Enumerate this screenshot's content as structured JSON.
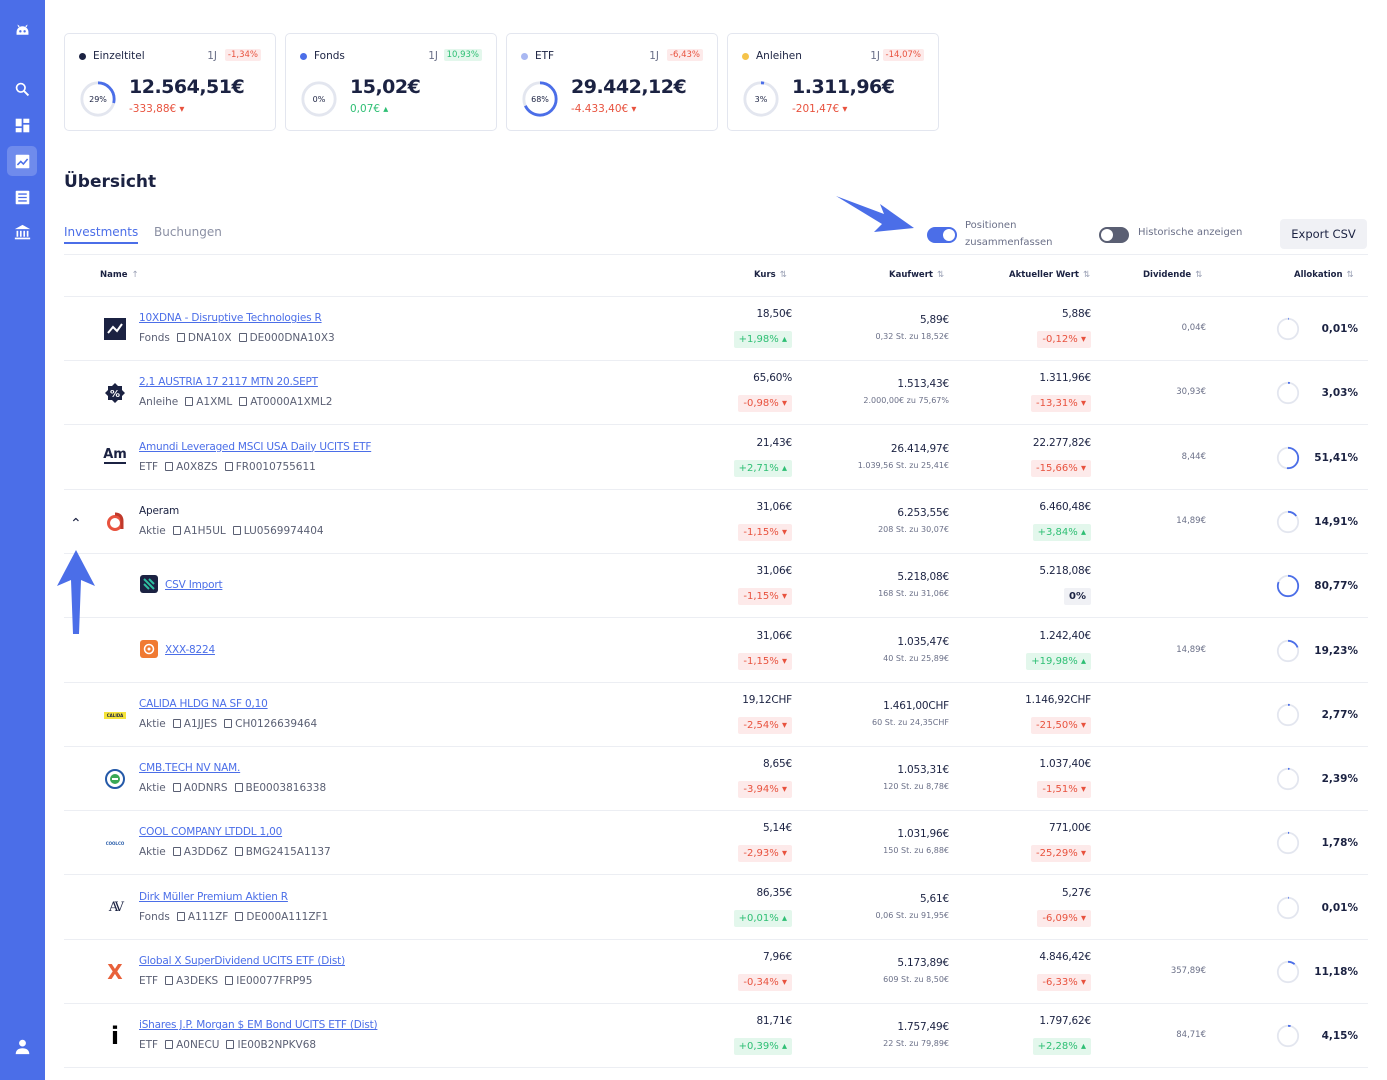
{
  "summary_cards": [
    {
      "name": "Einzeltitel",
      "dot_color": "#1b2242",
      "period": "1J",
      "perf": "-1,34%",
      "perf_sign": "neg",
      "share": "29%",
      "share_value": 0.29,
      "value": "12.564,51€",
      "delta": "-333,88€",
      "delta_dir": "down"
    },
    {
      "name": "Fonds",
      "dot_color": "#4b6ee8",
      "period": "1J",
      "perf": "10,93%",
      "perf_sign": "pos",
      "share": "0%",
      "share_value": 0,
      "value": "15,02€",
      "delta": "0,07€",
      "delta_dir": "up"
    },
    {
      "name": "ETF",
      "dot_color": "#a9b8f2",
      "period": "1J",
      "perf": "-6,43%",
      "perf_sign": "neg",
      "share": "68%",
      "share_value": 0.68,
      "value": "29.442,12€",
      "delta": "-4.433,40€",
      "delta_dir": "down"
    },
    {
      "name": "Anleihen",
      "dot_color": "#f5c34a",
      "period": "1J",
      "perf": "-14,07%",
      "perf_sign": "neg",
      "share": "3%",
      "share_value": 0.03,
      "value": "1.311,96€",
      "delta": "-201,47€",
      "delta_dir": "down"
    }
  ],
  "overview": {
    "title": "Übersicht"
  },
  "tabs": {
    "investments": "Investments",
    "bookings": "Buchungen"
  },
  "toggles": {
    "merge_label": "Positionen zusammenfassen",
    "merge_on": true,
    "history_label": "Historische anzeigen",
    "history_on": false
  },
  "export_label": "Export CSV",
  "columns": {
    "name": "Name",
    "kurs": "Kurs",
    "kaufwert": "Kaufwert",
    "aktueller_wert": "Aktueller Wert",
    "dividende": "Dividende",
    "allokation": "Allokation"
  },
  "sort_icons": {
    "name": "↑",
    "other": "⇅"
  },
  "rows": [
    {
      "name": "10XDNA - Disruptive Technologies R",
      "type": "Fonds",
      "wkn": "DNA10X",
      "isin": "DE000DNA10X3",
      "logo": "chart-icon",
      "kurs": "18,50€",
      "kurs_change": "+1,98%",
      "kurs_sign": "pos",
      "kaufwert": "5,89€",
      "kaufwert_detail": "0,32 St. zu 18,52€",
      "wert": "5,88€",
      "wert_change": "-0,12%",
      "wert_sign": "neg",
      "dividende": "0,04€",
      "allokation": "0,01%",
      "alloc_value": 0.0001
    },
    {
      "name": "2,1 AUSTRIA 17 2117 MTN 20.SEPT",
      "type": "Anleihe",
      "wkn": "A1XML",
      "isin": "AT0000A1XML2",
      "logo": "percent-icon",
      "kurs": "65,60%",
      "kurs_change": "-0,98%",
      "kurs_sign": "neg",
      "kaufwert": "1.513,43€",
      "kaufwert_detail": "2.000,00€ zu 75,67%",
      "wert": "1.311,96€",
      "wert_change": "-13,31%",
      "wert_sign": "neg",
      "dividende": "30,93€",
      "allokation": "3,03%",
      "alloc_value": 0.0303
    },
    {
      "name": "Amundi Leveraged MSCI USA Daily UCITS ETF",
      "type": "ETF",
      "wkn": "A0X8ZS",
      "isin": "FR0010755611",
      "logo": "amundi-logo",
      "logo_text": "Am",
      "kurs": "21,43€",
      "kurs_change": "+2,71%",
      "kurs_sign": "pos",
      "kaufwert": "26.414,97€",
      "kaufwert_detail": "1.039,56 St. zu 25,41€",
      "wert": "22.277,82€",
      "wert_change": "-15,66%",
      "wert_sign": "neg",
      "dividende": "8,44€",
      "allokation": "51,41%",
      "alloc_value": 0.5141
    },
    {
      "name": "Aperam",
      "type": "Aktie",
      "wkn": "A1H5UL",
      "isin": "LU0569974404",
      "logo": "aperam-logo",
      "plain": true,
      "expanded": true,
      "kurs": "31,06€",
      "kurs_change": "-1,15%",
      "kurs_sign": "neg",
      "kaufwert": "6.253,55€",
      "kaufwert_detail": "208 St. zu 30,07€",
      "wert": "6.460,48€",
      "wert_change": "+3,84%",
      "wert_sign": "pos",
      "dividende": "14,89€",
      "allokation": "14,91%",
      "alloc_value": 0.1491
    },
    {
      "sub": true,
      "name": "CSV Import",
      "logo": "csv-import-logo",
      "kurs": "31,06€",
      "kurs_change": "-1,15%",
      "kurs_sign": "neg",
      "kaufwert": "5.218,08€",
      "kaufwert_detail": "168 St. zu 31,06€",
      "wert": "5.218,08€",
      "wert_change": "0%",
      "wert_sign": "zero",
      "dividende": "",
      "allokation": "80,77%",
      "alloc_value": 0.8077
    },
    {
      "sub": true,
      "name": "XXX-8224",
      "logo": "broker-lion-logo",
      "kurs": "31,06€",
      "kurs_change": "-1,15%",
      "kurs_sign": "neg",
      "kaufwert": "1.035,47€",
      "kaufwert_detail": "40 St. zu 25,89€",
      "wert": "1.242,40€",
      "wert_change": "+19,98%",
      "wert_sign": "pos",
      "dividende": "14,89€",
      "allokation": "19,23%",
      "alloc_value": 0.1923
    },
    {
      "name": "CALIDA HLDG NA SF 0,10",
      "type": "Aktie",
      "wkn": "A1JJES",
      "isin": "CH0126639464",
      "logo": "calida-logo",
      "logo_text": "CALIDA",
      "kurs": "19,12CHF",
      "kurs_change": "-2,54%",
      "kurs_sign": "neg",
      "kaufwert": "1.461,00CHF",
      "kaufwert_detail": "60 St. zu 24,35CHF",
      "wert": "1.146,92CHF",
      "wert_change": "-21,50%",
      "wert_sign": "neg",
      "dividende": "",
      "allokation": "2,77%",
      "alloc_value": 0.0277
    },
    {
      "name": "CMB.TECH NV NAM.",
      "type": "Aktie",
      "wkn": "A0DNRS",
      "isin": "BE0003816338",
      "logo": "cmb-tech-logo",
      "kurs": "8,65€",
      "kurs_change": "-3,94%",
      "kurs_sign": "neg",
      "kaufwert": "1.053,31€",
      "kaufwert_detail": "120 St. zu 8,78€",
      "wert": "1.037,40€",
      "wert_change": "-1,51%",
      "wert_sign": "neg",
      "dividende": "",
      "allokation": "2,39%",
      "alloc_value": 0.0239
    },
    {
      "name": "COOL COMPANY LTDDL 1,00",
      "type": "Aktie",
      "wkn": "A3DD6Z",
      "isin": "BMG2415A1137",
      "logo": "coolco-logo",
      "logo_text": "COOLCO",
      "kurs": "5,14€",
      "kurs_change": "-2,93%",
      "kurs_sign": "neg",
      "kaufwert": "1.031,96€",
      "kaufwert_detail": "150 St. zu 6,88€",
      "wert": "771,00€",
      "wert_change": "-25,29%",
      "wert_sign": "neg",
      "dividende": "",
      "allokation": "1,78%",
      "alloc_value": 0.0178
    },
    {
      "name": "Dirk Müller Premium Aktien R",
      "type": "Fonds",
      "wkn": "A111ZF",
      "isin": "DE000A111ZF1",
      "logo": "dirk-mueller-logo",
      "logo_text": "AV",
      "kurs": "86,35€",
      "kurs_change": "+0,01%",
      "kurs_sign": "pos",
      "kaufwert": "5,61€",
      "kaufwert_detail": "0,06 St. zu 91,95€",
      "wert": "5,27€",
      "wert_change": "-6,09%",
      "wert_sign": "neg",
      "dividende": "",
      "allokation": "0,01%",
      "alloc_value": 0.0001
    },
    {
      "name": "Global X SuperDividend UCITS ETF (Dist)",
      "type": "ETF",
      "wkn": "A3DEKS",
      "isin": "IE00077FRP95",
      "logo": "global-x-logo",
      "logo_text": "X",
      "kurs": "7,96€",
      "kurs_change": "-0,34%",
      "kurs_sign": "neg",
      "kaufwert": "5.173,89€",
      "kaufwert_detail": "609 St. zu 8,50€",
      "wert": "4.846,42€",
      "wert_change": "-6,33%",
      "wert_sign": "neg",
      "dividende": "357,89€",
      "allokation": "11,18%",
      "alloc_value": 0.1118
    },
    {
      "name": "iShares J.P. Morgan $ EM Bond UCITS ETF (Dist)",
      "type": "ETF",
      "wkn": "A0NECU",
      "isin": "IE00B2NPKV68",
      "logo": "ishares-logo",
      "logo_text": "i",
      "kurs": "81,71€",
      "kurs_change": "+0,39%",
      "kurs_sign": "pos",
      "kaufwert": "1.757,49€",
      "kaufwert_detail": "22 St. zu 79,89€",
      "wert": "1.797,62€",
      "wert_change": "+2,28%",
      "wert_sign": "pos",
      "dividende": "84,71€",
      "allokation": "4,15%",
      "alloc_value": 0.0415
    }
  ],
  "colors": {
    "accent": "#4b6ee8",
    "sidebar": "#4b6ee8",
    "negative": "#e8523e",
    "positive": "#2ebf74",
    "text": "#1b2242"
  }
}
